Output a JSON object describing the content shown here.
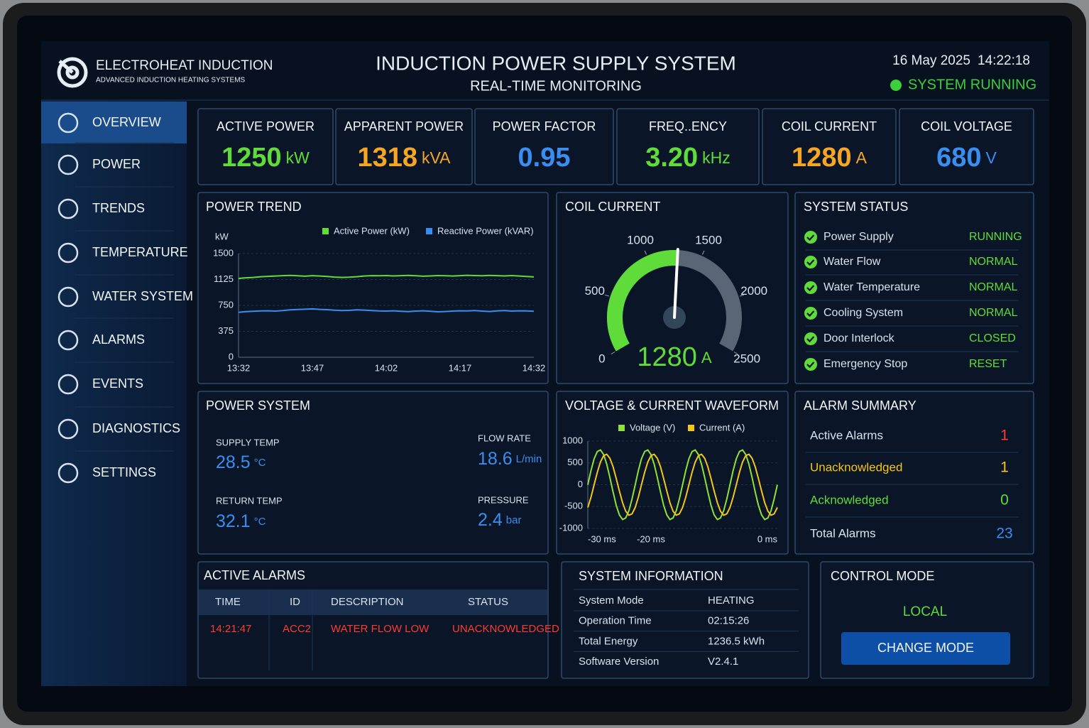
{
  "header": {
    "brand": "ELECTROHEAT INDUCTION",
    "tagline": "ADVANCED INDUCTION HEATING SYSTEMS",
    "title": "INDUCTION POWER SUPPLY SYSTEM",
    "subtitle": "REAL-TIME MONITORING",
    "date": "16 May 2025",
    "time": "14:22:18",
    "status": "SYSTEM RUNNING"
  },
  "nav": {
    "items": [
      "OVERVIEW",
      "POWER",
      "TRENDS",
      "TEMPERATURE",
      "WATER SYSTEM",
      "ALARMS",
      "EVENTS",
      "DIAGNOSTICS",
      "SETTINGS"
    ],
    "active": 0
  },
  "kpis": [
    {
      "label": "ACTIVE POWER",
      "value": 1250,
      "unit": "kW",
      "color": "#5fdc3a"
    },
    {
      "label": "APPARENT POWER",
      "value": 1318,
      "unit": "kVA",
      "color": "#f5a623"
    },
    {
      "label": "POWER FACTOR",
      "value": 0.95,
      "unit": null,
      "color": "#3a8ef0"
    },
    {
      "label": "FREQ..ENCY",
      "value": "3.20",
      "unit": "kHz",
      "color": "#5fdc3a"
    },
    {
      "label": "COIL CURRENT",
      "value": 1280,
      "unit": "A",
      "color": "#f5a623"
    },
    {
      "label": "COIL VOLTAGE",
      "value": 680,
      "unit": "V",
      "color": "#3a8ef0"
    }
  ],
  "power_trend": {
    "type": "line",
    "title": "POWER TREND",
    "y_label": "kW",
    "categories": [
      "13:32",
      null,
      null,
      null,
      null,
      null,
      null,
      null,
      null,
      null,
      "13:47",
      null,
      null,
      null,
      null,
      null,
      null,
      null,
      null,
      null,
      "14:02",
      null,
      null,
      null,
      null,
      null,
      null,
      null,
      null,
      null,
      "14:17",
      null,
      null,
      null,
      null,
      null,
      null,
      null,
      null,
      null,
      "14:32"
    ],
    "series": [
      {
        "name": "Active Power (kW)",
        "color": "#5fdc3a",
        "values": [
          1140,
          1150,
          1155,
          1165,
          1170,
          1175,
          1180,
          1185,
          1178,
          1172,
          1180,
          1175,
          1168,
          1160,
          1155,
          1158,
          1165,
          1175,
          1180,
          1178,
          1182,
          1176,
          1180,
          1185,
          1178,
          1172,
          1176,
          1182,
          1178,
          1175,
          1180,
          1186,
          1182,
          1178,
          1185,
          1180,
          1176,
          1182,
          1175,
          1168,
          1162
        ]
      },
      {
        "name": "Reactive Power (kVAR)",
        "color": "#3a8ef0",
        "values": [
          650,
          660,
          665,
          670,
          672,
          668,
          675,
          685,
          690,
          695,
          700,
          692,
          688,
          680,
          675,
          678,
          685,
          682,
          675,
          670,
          668,
          672,
          665,
          660,
          668,
          672,
          665,
          658,
          662,
          668,
          672,
          670,
          675,
          668,
          662,
          670,
          675,
          668,
          672,
          670,
          665
        ]
      }
    ],
    "ylim": [
      0,
      1500
    ],
    "yticks": [
      0,
      375,
      750,
      1125,
      1500
    ],
    "grid": true
  },
  "gauge": {
    "type": "gauge",
    "title": "COIL CURRENT",
    "value": 1280,
    "unit": "A",
    "range": [
      0,
      2500
    ],
    "ticks": [
      0,
      500,
      1000,
      1500,
      2000,
      2500
    ],
    "color": "#5fdc3a"
  },
  "system_status": {
    "title": "SYSTEM STATUS",
    "rows": [
      {
        "name": "Power Supply",
        "state": "RUNNING"
      },
      {
        "name": "Water Flow",
        "state": "NORMAL"
      },
      {
        "name": "Water Temperature",
        "state": "NORMAL"
      },
      {
        "name": "Cooling System",
        "state": "NORMAL"
      },
      {
        "name": "Door Interlock",
        "state": "CLOSED"
      },
      {
        "name": "Emergency Stop",
        "state": "RESET"
      }
    ]
  },
  "power_system": {
    "title": "POWER SYSTEM",
    "readings": [
      {
        "label": "SUPPLY TEMP",
        "value": 28.5,
        "unit": "°C"
      },
      {
        "label": "RETURN TEMP",
        "value": 32.1,
        "unit": "°C"
      },
      {
        "label": "FLOW RATE",
        "value": 18.6,
        "unit": "L/min"
      },
      {
        "label": "PRESSURE",
        "value": 2.4,
        "unit": "bar"
      }
    ]
  },
  "waveform": {
    "type": "line",
    "title": "VOLTAGE & CURRENT WAVEFORM",
    "x": [
      -30,
      -29.5,
      -29,
      -28.5,
      -28,
      -27.5,
      -27,
      -26.5,
      -26,
      -25.5,
      -25,
      -24.5,
      -24,
      -23.5,
      -23,
      -22.5,
      -22,
      -21.5,
      -21,
      -20.5,
      -20,
      -19.5,
      -19,
      -18.5,
      -18,
      -17.5,
      -17,
      -16.5,
      -16,
      -15.5,
      -15,
      -14.5,
      -14,
      -13.5,
      -13,
      -12.5,
      -12,
      -11.5,
      -11,
      -10.5,
      -10,
      -9.5,
      -9,
      -8.5,
      -8,
      -7.5,
      -7,
      -6.5,
      -6,
      -5.5,
      -5,
      -4.5,
      -4,
      -3.5,
      -3,
      -2.5,
      -2,
      -1.5,
      -1,
      -0.5,
      0
    ],
    "series": [
      {
        "name": "Voltage (V)",
        "color": "#8fe03a",
        "values": [
          0,
          325,
          595,
          761,
          796,
          693,
          470,
          166,
          -166,
          -470,
          -693,
          -796,
          -761,
          -595,
          -325,
          0,
          325,
          595,
          761,
          796,
          693,
          470,
          166,
          -166,
          -470,
          -693,
          -796,
          -761,
          -595,
          -325,
          0,
          325,
          595,
          761,
          796,
          693,
          470,
          166,
          -166,
          -470,
          -693,
          -796,
          -761,
          -595,
          -325,
          0,
          325,
          595,
          761,
          796,
          693,
          470,
          166,
          -166,
          -470,
          -693,
          -796,
          -761,
          -595,
          -325,
          0
        ]
      },
      {
        "name": "Current (A)",
        "color": "#f5c518",
        "values": [
          -520,
          -285,
          0,
          285,
          520,
          666,
          697,
          606,
          412,
          145,
          -145,
          -412,
          -606,
          -697,
          -666,
          -520,
          -285,
          0,
          285,
          520,
          666,
          697,
          606,
          412,
          145,
          -145,
          -412,
          -606,
          -697,
          -666,
          -520,
          -285,
          0,
          285,
          520,
          666,
          697,
          606,
          412,
          145,
          -145,
          -412,
          -606,
          -697,
          -666,
          -520,
          -285,
          0,
          285,
          520,
          666,
          697,
          606,
          412,
          145,
          -145,
          -412,
          -606,
          -697,
          -666,
          -520
        ]
      }
    ],
    "xlim": [
      -30,
      0
    ],
    "xticks": [
      {
        "value": -30,
        "label": "-30 ms"
      },
      {
        "value": -20,
        "label": "-20 ms"
      },
      {
        "value": 0,
        "label": "0 ms"
      }
    ],
    "ylim": [
      -1000,
      1000
    ],
    "yticks": [
      1000,
      500,
      0,
      -500,
      -1000
    ],
    "grid": true
  },
  "alarm_summary": {
    "title": "ALARM SUMMARY",
    "rows": [
      {
        "label": "Active Alarms",
        "count": 1,
        "label_color": "#d8e2ee",
        "color": "#ff3b30"
      },
      {
        "label": "Unacknowledged",
        "count": 1,
        "label_color": "#f5c518",
        "color": "#f5c518"
      },
      {
        "label": "Acknowledged",
        "count": 0,
        "label_color": "#5fdc3a",
        "color": "#5fdc3a"
      },
      {
        "label": "Total Alarms",
        "count": 23,
        "label_color": "#d8e2ee",
        "color": "#3a8ef0"
      }
    ]
  },
  "active_alarms": {
    "title": "ACTIVE ALARMS",
    "columns": [
      "TIME",
      "ID",
      "DESCRIPTION",
      "STATUS"
    ],
    "rows": [
      [
        "14:21:47",
        "ACC2",
        "WATER FLOW LOW",
        "UNACKNOWLEDGED"
      ]
    ]
  },
  "system_info": {
    "title": "SYSTEM INFORMATION",
    "rows": [
      [
        "System Mode",
        "HEATING"
      ],
      [
        "Operation Time",
        "02:15:26"
      ],
      [
        "Total Energy",
        "1236.5 kWh"
      ],
      [
        "Software Version",
        "V2.4.1"
      ]
    ]
  },
  "control_mode": {
    "title": "CONTROL MODE",
    "mode": "LOCAL",
    "button": "CHANGE MODE"
  }
}
